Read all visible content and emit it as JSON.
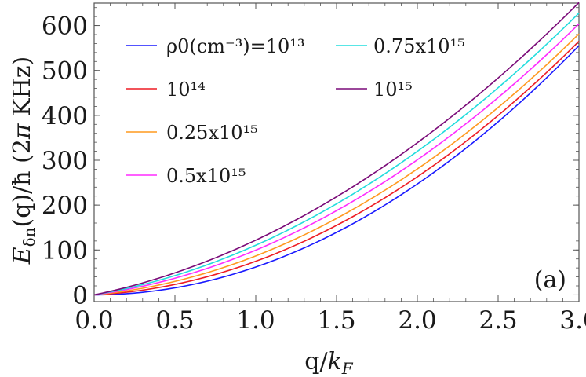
{
  "chart_data": {
    "type": "line",
    "title": "",
    "xlabel": "q/k_F",
    "ylabel": "E_δn(q)/ħ (2π KHz)",
    "xlim": [
      0.0,
      3.0
    ],
    "ylim": [
      -15,
      650
    ],
    "xticks": [
      "0.0",
      "0.5",
      "1.0",
      "1.5",
      "2.0",
      "2.5",
      "3.0"
    ],
    "yticks": [
      "0",
      "100",
      "200",
      "300",
      "400",
      "500",
      "600"
    ],
    "xtick_values": [
      0.0,
      0.5,
      1.0,
      1.5,
      2.0,
      2.5,
      3.0
    ],
    "ytick_values": [
      0,
      100,
      200,
      300,
      400,
      500,
      600
    ],
    "x": [
      0.0,
      0.5,
      1.0,
      1.5,
      2.0,
      2.5,
      3.0
    ],
    "series": [
      {
        "name": "ρ0(cm⁻³)=10¹³",
        "color": "#1a1aff",
        "values": [
          0,
          16,
          62,
          139,
          247,
          386,
          555
        ]
      },
      {
        "name": "10¹⁴",
        "color": "#ee1c24",
        "values": [
          0,
          21,
          72,
          153,
          265,
          407,
          560
        ]
      },
      {
        "name": "0.25x10¹⁵",
        "color": "#ff9a1f",
        "values": [
          0,
          27,
          83,
          168,
          283,
          427,
          575
        ]
      },
      {
        "name": "0.5x10¹⁵",
        "color": "#ff2bff",
        "values": [
          0,
          34,
          96,
          186,
          303,
          448,
          598
        ]
      },
      {
        "name": "0.75x10¹⁵",
        "color": "#22dddd",
        "values": [
          0,
          40,
          107,
          201,
          322,
          470,
          622
        ]
      },
      {
        "name": "10¹⁵",
        "color": "#7a0a78",
        "values": [
          0,
          46,
          118,
          216,
          342,
          492,
          645
        ]
      }
    ],
    "legend_placement": "top-left",
    "grid": false,
    "annotation": "(a)"
  }
}
